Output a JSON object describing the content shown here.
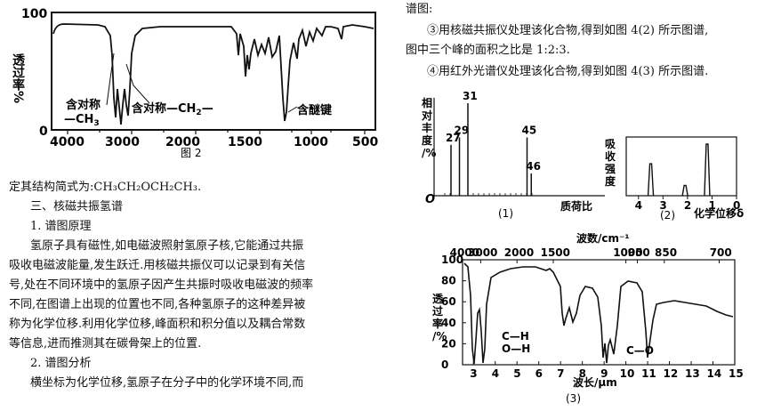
{
  "left_chart": {
    "y_top_label": "100",
    "y_zero_label": "0",
    "y_axis_title": "透过率%",
    "x_ticks": [
      "4000",
      "3000",
      "2000",
      "1500",
      "1000",
      "500"
    ],
    "annotations": {
      "sym_a": "含对称",
      "sym_a2": "—CH",
      "sym_a2_sub": "3",
      "sym_b": "含对称—CH",
      "sym_b_sub": "2",
      "sym_b_tail": "—",
      "ether": "含醚键"
    },
    "caption": "图 2"
  },
  "left_text": {
    "line1": "定其结构简式为:CH₃CH₂OCH₂CH₃.",
    "heading3": "三、核磁共振氢谱",
    "sub1": "1. 谱图原理",
    "p1": [
      "氢原子具有磁性,如电磁波照射氢原子核,它能通过共振",
      "吸收电磁波能量,发生跃迁.用核磁共振仪可以记录到有关信",
      "号,处在不同环境中的氢原子因产生共振时吸收电磁波的频率",
      "不同,在图谱上出现的位置也不同,各种氢原子的这种差异被",
      "称为化学位移.利用化学位移,峰面积和积分值以及耦合常数",
      "等信息,进而推测其在碳骨架上的位置."
    ],
    "sub2": "2. 谱图分析",
    "p2": "横坐标为化学位移,氢原子在分子中的化学环境不同,而"
  },
  "right_text": {
    "line0": "谱图:",
    "step3a": "③用核磁共振仪处理该化合物,得到如图 4(2) 所示图谱,",
    "step3b": "图中三个峰的面积之比是 1:2:3.",
    "step4": "④用红外光谱仪处理该化合物,得到如图 4(3) 所示图谱."
  },
  "mass_spec": {
    "y_title": [
      "相",
      "对",
      "丰",
      "度",
      "/%"
    ],
    "origin": "O",
    "x_title": "质荷比",
    "caption": "(1)",
    "peaks": [
      {
        "label": "27",
        "mz": 27,
        "rel": 0.55
      },
      {
        "label": "29",
        "mz": 29,
        "rel": 0.63
      },
      {
        "label": "31",
        "mz": 31,
        "rel": 1.0
      },
      {
        "label": "45",
        "mz": 45,
        "rel": 0.63
      },
      {
        "label": "46",
        "mz": 46,
        "rel": 0.24
      }
    ]
  },
  "nmr": {
    "y_title": [
      "吸",
      "收",
      "强",
      "度"
    ],
    "x_ticks": [
      "4",
      "3",
      "2",
      "1",
      "0"
    ],
    "caption": "(2)",
    "x_title": "化学位移δ",
    "peaks": [
      {
        "delta": 3.5,
        "rel": 0.62
      },
      {
        "delta": 2.1,
        "rel": 0.2
      },
      {
        "delta": 1.2,
        "rel": 1.0
      }
    ]
  },
  "ir": {
    "top_title": "波数/cm⁻¹",
    "top_ticks": [
      "4000",
      "3000",
      "2000",
      "1500",
      "1000",
      "950",
      "850",
      "700"
    ],
    "y_ticks": [
      "100",
      "80",
      "60",
      "40",
      "20",
      "0"
    ],
    "y_title": [
      "透",
      "过",
      "率",
      "/%"
    ],
    "bottom_ticks": [
      "3",
      "4",
      "5",
      "6",
      "7",
      "8",
      "9",
      "10",
      "11",
      "12",
      "13",
      "14",
      "15"
    ],
    "bottom_title": "波长/μm",
    "caption": "(3)",
    "annotations": {
      "ch": "C—H",
      "oh": "O—H",
      "co": "C—O"
    }
  }
}
